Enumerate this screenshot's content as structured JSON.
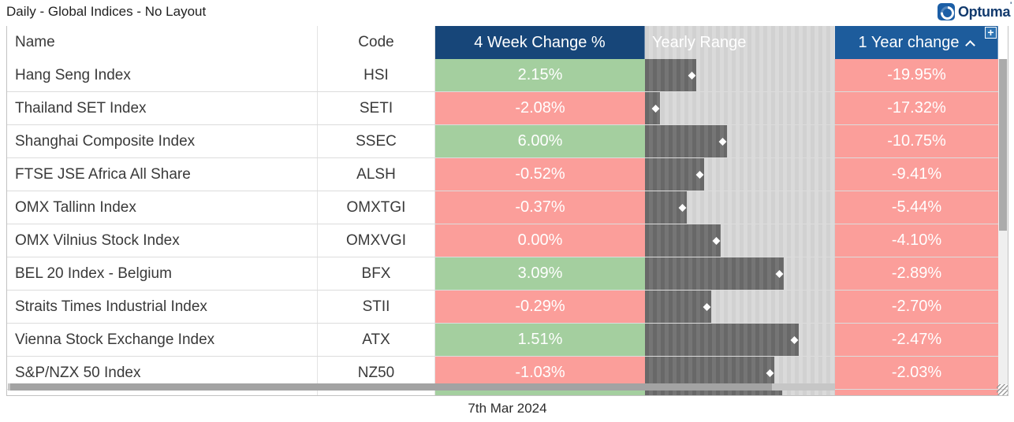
{
  "window": {
    "title": "Daily - Global Indices - No Layout",
    "brand": "Optuma",
    "brand_mark": "'",
    "date_footer": "7th Mar 2024"
  },
  "icons": {
    "add_column": "+"
  },
  "colors": {
    "header_navy": "#174679",
    "header_sorted_blue": "#1d5c9c",
    "positive_green": "#a4cf9f",
    "negative_red": "#fb9e9a",
    "range_dark": "#6e6e6e",
    "range_light": "#d6d6d6",
    "brand_blue": "#1b5ea6"
  },
  "table": {
    "columns": [
      {
        "label": "Name"
      },
      {
        "label": "Code"
      },
      {
        "label": "4 Week Change %"
      },
      {
        "label": "Yearly Range"
      },
      {
        "label": "1 Year change",
        "sorted_ascending": true
      }
    ],
    "rows": [
      {
        "name": "Hang Seng Index",
        "code": "HSI",
        "four_week_change": "2.15%",
        "four_week_positive": true,
        "range_pct": 27,
        "one_year_change": "-19.95%"
      },
      {
        "name": "Thailand SET Index",
        "code": "SETI",
        "four_week_change": "-2.08%",
        "four_week_positive": false,
        "range_pct": 8,
        "one_year_change": "-17.32%"
      },
      {
        "name": "Shanghai Composite Index",
        "code": "SSEC",
        "four_week_change": "6.00%",
        "four_week_positive": true,
        "range_pct": 43,
        "one_year_change": "-10.75%"
      },
      {
        "name": "FTSE JSE Africa All Share",
        "code": "ALSH",
        "four_week_change": "-0.52%",
        "four_week_positive": false,
        "range_pct": 31,
        "one_year_change": "-9.41%"
      },
      {
        "name": "OMX Tallinn Index",
        "code": "OMXTGI",
        "four_week_change": "-0.37%",
        "four_week_positive": false,
        "range_pct": 22,
        "one_year_change": "-5.44%"
      },
      {
        "name": "OMX Vilnius Stock Index",
        "code": "OMXVGI",
        "four_week_change": "0.00%",
        "four_week_positive": false,
        "range_pct": 40,
        "one_year_change": "-4.10%"
      },
      {
        "name": "BEL 20 Index - Belgium",
        "code": "BFX",
        "four_week_change": "3.09%",
        "four_week_positive": true,
        "range_pct": 73,
        "one_year_change": "-2.89%"
      },
      {
        "name": "Straits Times Industrial Index",
        "code": "STII",
        "four_week_change": "-0.29%",
        "four_week_positive": false,
        "range_pct": 35,
        "one_year_change": "-2.70%"
      },
      {
        "name": "Vienna Stock Exchange Index",
        "code": "ATX",
        "four_week_change": "1.51%",
        "four_week_positive": true,
        "range_pct": 81,
        "one_year_change": "-2.47%"
      },
      {
        "name": "S&P/NZX 50 Index",
        "code": "NZ50",
        "four_week_change": "-1.03%",
        "four_week_positive": false,
        "range_pct": 68,
        "one_year_change": "-2.03%"
      }
    ],
    "partial_row": {
      "four_week_positive": true,
      "range_pct": 72,
      "one_year_positive": false
    }
  }
}
